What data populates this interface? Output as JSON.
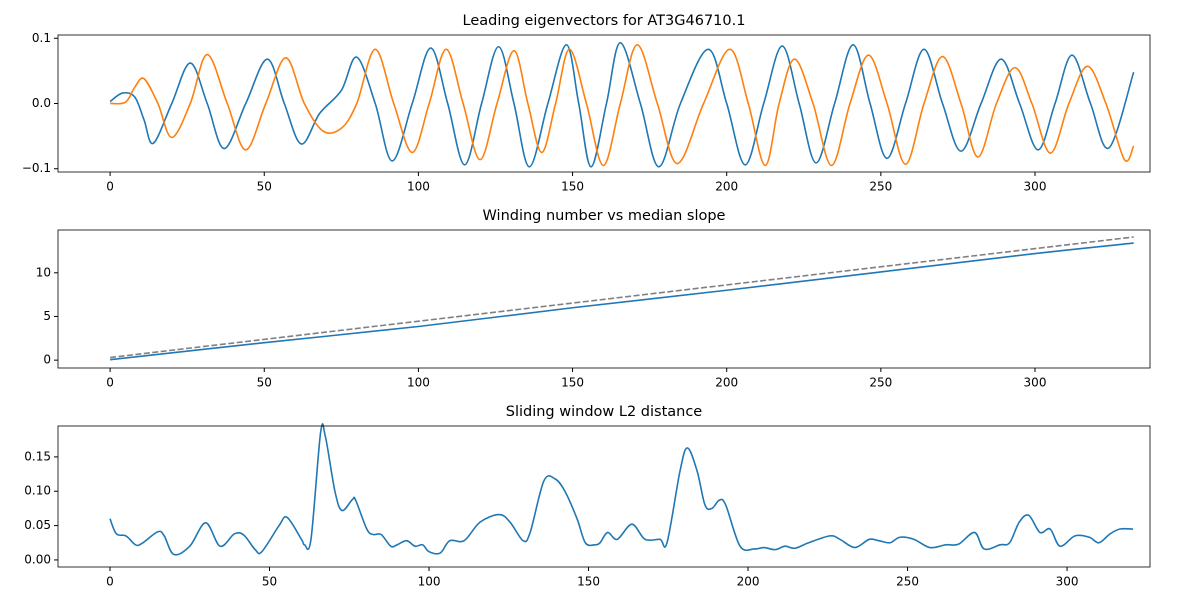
{
  "chart_data": [
    {
      "type": "line",
      "title": "Leading eigenvectors for AT3G46710.1",
      "xlim": [
        -16.9,
        337.3
      ],
      "xticks": [
        0,
        50,
        100,
        150,
        200,
        250,
        300
      ],
      "ylim": [
        -0.105,
        0.105
      ],
      "yticks": [
        {
          "value": -0.1,
          "label": "−0.1"
        },
        {
          "value": 0,
          "label": "0.0"
        },
        0.1
      ],
      "series": [
        {
          "color": "#1f77b4",
          "x": [
            0,
            4,
            8,
            11,
            14,
            20,
            26,
            31.5,
            37,
            44,
            51,
            56.5,
            62,
            68,
            75,
            80,
            86,
            91.5,
            98,
            104,
            109.5,
            115,
            120.5,
            126,
            131,
            136,
            142,
            148,
            152,
            156,
            161,
            165.5,
            172,
            178,
            185,
            194,
            200,
            206,
            212,
            218,
            223.5,
            229,
            235,
            241,
            246.5,
            252,
            258,
            264,
            270,
            276,
            282.5,
            289,
            295,
            301,
            306.5,
            312,
            318,
            324,
            332
          ],
          "values": [
            0.003,
            0.016,
            0.01,
            -0.025,
            -0.061,
            0,
            0.062,
            0,
            -0.069,
            0,
            0.068,
            0,
            -0.062,
            -0.015,
            0.02,
            0.071,
            0,
            -0.088,
            0,
            0.085,
            0,
            -0.094,
            0,
            0.087,
            0,
            -0.097,
            0,
            0.09,
            0,
            -0.097,
            0,
            0.093,
            0,
            -0.097,
            0,
            0.083,
            0,
            -0.094,
            0,
            0.088,
            0,
            -0.091,
            0,
            0.09,
            0,
            -0.084,
            0,
            0.083,
            0,
            -0.073,
            0,
            0.068,
            0,
            -0.071,
            0,
            0.074,
            0,
            -0.068,
            0.048
          ]
        },
        {
          "color": "#ff7f0e",
          "x": [
            0,
            5,
            8,
            11,
            15.5,
            20,
            26,
            31.5,
            38,
            44,
            50.5,
            57,
            63,
            69,
            75,
            80,
            86,
            92,
            98,
            103.5,
            109,
            114.5,
            120,
            125.5,
            131,
            135.5,
            140,
            144.5,
            149,
            154.5,
            160,
            165.5,
            171,
            177.5,
            184,
            192.5,
            201,
            207,
            212.5,
            217,
            222,
            228,
            234,
            240,
            246,
            252,
            258,
            264,
            270,
            276,
            281.5,
            287.5,
            293.5,
            299,
            305,
            311,
            317,
            323,
            329,
            332
          ],
          "values": [
            0,
            0.002,
            0.025,
            0.038,
            0,
            -0.052,
            0,
            0.075,
            0,
            -0.071,
            0,
            0.07,
            0,
            -0.042,
            -0.038,
            0,
            0.083,
            0,
            -0.075,
            0,
            0.083,
            0,
            -0.086,
            0,
            0.081,
            0,
            -0.075,
            0,
            0.083,
            0,
            -0.095,
            0,
            0.09,
            0,
            -0.092,
            0,
            0.083,
            0,
            -0.095,
            0,
            0.068,
            0,
            -0.095,
            0,
            0.074,
            0,
            -0.093,
            0,
            0.072,
            0,
            -0.082,
            0,
            0.055,
            0,
            -0.076,
            0,
            0.057,
            0,
            -0.086,
            -0.065
          ]
        }
      ]
    },
    {
      "type": "line",
      "title": "Winding number vs median slope",
      "xlim": [
        -16.9,
        337.3
      ],
      "xticks": [
        0,
        50,
        100,
        150,
        200,
        250,
        300
      ],
      "ylim": [
        -0.9,
        14.9
      ],
      "yticks": [
        0,
        5,
        10
      ],
      "series": [
        {
          "color": "#1f77b4",
          "x": [
            0,
            50,
            100,
            150,
            200,
            250,
            300,
            332
          ],
          "values": [
            0.05,
            2.0,
            3.85,
            6.0,
            8.0,
            10.1,
            12.2,
            13.4
          ]
        },
        {
          "color": "#808080",
          "linestyle": "dashed",
          "x": [
            0,
            332
          ],
          "values": [
            0.3,
            14.1
          ]
        }
      ]
    },
    {
      "type": "line",
      "title": "Sliding window L2 distance",
      "xlim": [
        -16.3,
        326
      ],
      "xticks": [
        0,
        50,
        100,
        150,
        200,
        250,
        300
      ],
      "ylim": [
        -0.0103,
        0.195
      ],
      "yticks": [
        {
          "value": 0,
          "label": "0.00"
        },
        0.05,
        {
          "value": 0.1,
          "label": "0.10"
        },
        0.15
      ],
      "color": "#1f77b4",
      "x": [
        0,
        2,
        5,
        8,
        10,
        15,
        17,
        20,
        25,
        30,
        34.5,
        39,
        42,
        45.5,
        47.6,
        53,
        55.5,
        60,
        61,
        63,
        66,
        67.5,
        70.5,
        72.7,
        76,
        77,
        80.5,
        82.5,
        85,
        88,
        90,
        93,
        95.6,
        98,
        100,
        103.5,
        106.5,
        111,
        116,
        122,
        125.4,
        129.5,
        131.7,
        136,
        139.5,
        142.6,
        146.4,
        149,
        152,
        153.6,
        156,
        159,
        163.6,
        167.7,
        172.4,
        174.6,
        178.7,
        181,
        184,
        186.5,
        188.7,
        191,
        193,
        197.5,
        202,
        205,
        208.5,
        211.6,
        214.7,
        219,
        225.7,
        228.8,
        233.5,
        238,
        241,
        244.5,
        247.6,
        252,
        257,
        262,
        266,
        271,
        274,
        279,
        282,
        285,
        288,
        291.5,
        294.7,
        297.8,
        302.5,
        307,
        310,
        313.5,
        316.6,
        320.7
      ],
      "values": [
        0.06,
        0.038,
        0.035,
        0.022,
        0.024,
        0.041,
        0.035,
        0.008,
        0.02,
        0.054,
        0.02,
        0.038,
        0.036,
        0.015,
        0.012,
        0.05,
        0.062,
        0.03,
        0.022,
        0.03,
        0.185,
        0.18,
        0.1,
        0.072,
        0.088,
        0.087,
        0.045,
        0.037,
        0.037,
        0.02,
        0.022,
        0.028,
        0.02,
        0.022,
        0.012,
        0.01,
        0.028,
        0.028,
        0.055,
        0.066,
        0.055,
        0.028,
        0.04,
        0.115,
        0.118,
        0.1,
        0.06,
        0.025,
        0.022,
        0.025,
        0.04,
        0.03,
        0.052,
        0.03,
        0.03,
        0.025,
        0.13,
        0.163,
        0.13,
        0.08,
        0.075,
        0.087,
        0.08,
        0.02,
        0.016,
        0.018,
        0.015,
        0.02,
        0.017,
        0.025,
        0.035,
        0.03,
        0.018,
        0.03,
        0.028,
        0.025,
        0.033,
        0.03,
        0.018,
        0.022,
        0.023,
        0.04,
        0.016,
        0.022,
        0.025,
        0.055,
        0.065,
        0.04,
        0.045,
        0.02,
        0.035,
        0.033,
        0.025,
        0.038,
        0.045,
        0.045
      ]
    }
  ]
}
